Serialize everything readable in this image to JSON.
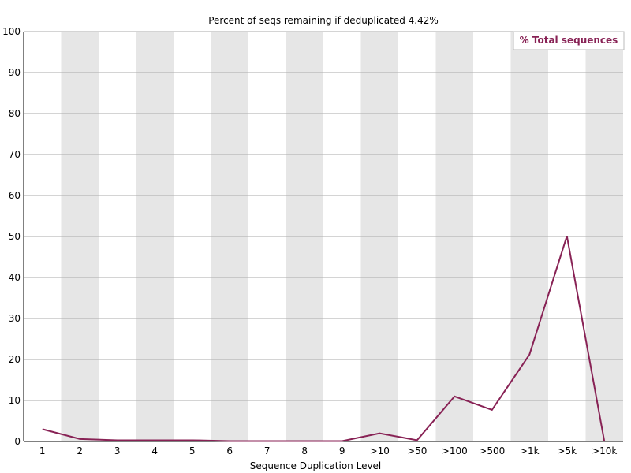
{
  "chart_data": {
    "type": "line",
    "title": "Percent of seqs remaining if deduplicated 4.42%",
    "xlabel": "Sequence Duplication Level",
    "ylabel": "",
    "categories": [
      "1",
      "2",
      "3",
      "4",
      "5",
      "6",
      "7",
      "8",
      "9",
      ">10",
      ">50",
      ">100",
      ">500",
      ">1k",
      ">5k",
      ">10k"
    ],
    "series": [
      {
        "name": "% Total sequences",
        "color": "#882255",
        "values": [
          3.0,
          0.6,
          0.3,
          0.3,
          0.3,
          0.1,
          0.1,
          0.1,
          0.1,
          2.0,
          0.3,
          11.0,
          7.7,
          21.2,
          50.1,
          0.0
        ]
      }
    ],
    "ylim": [
      0,
      100
    ],
    "yticks": [
      0,
      10,
      20,
      30,
      40,
      50,
      60,
      70,
      80,
      90,
      100
    ],
    "grid": true,
    "alternating_column_shading": true,
    "legend_position": "top-right"
  }
}
